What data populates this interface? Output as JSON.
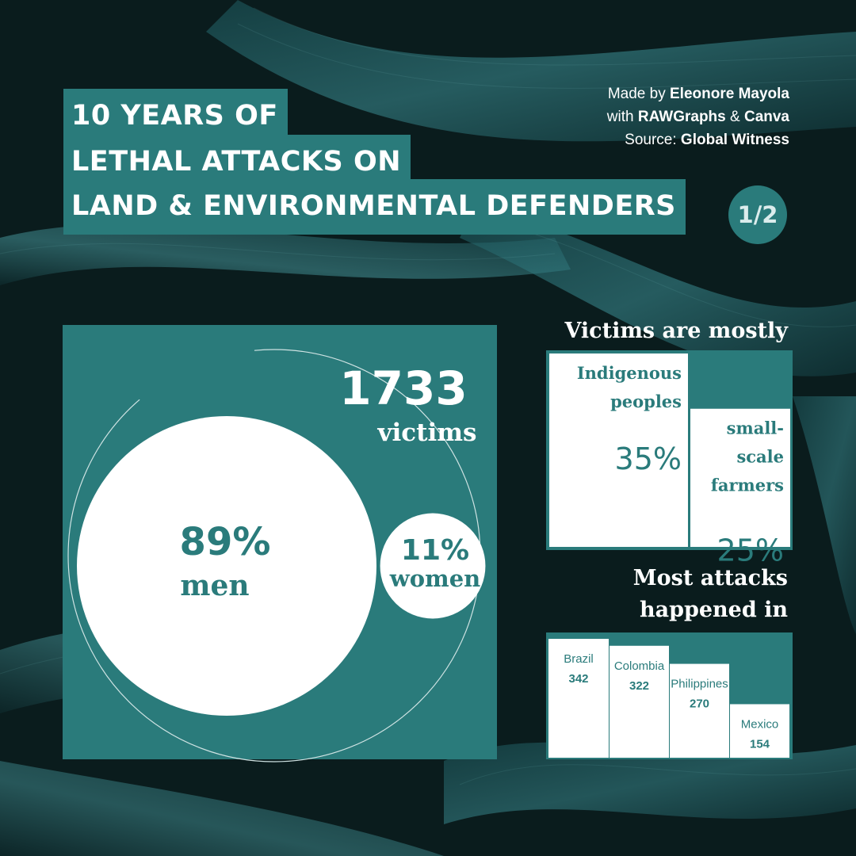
{
  "title": {
    "line1": "10 YEARS OF",
    "line2": "LETHAL ATTACKS ON",
    "line3": "LAND & ENVIRONMENTAL DEFENDERS"
  },
  "credits": {
    "made_by_prefix": "Made by ",
    "author": "Eleonore Mayola",
    "with_prefix": "with ",
    "tool1": "RAWGraphs",
    "amp": " & ",
    "tool2": "Canva",
    "source_prefix": "Source: ",
    "source": "Global Witness"
  },
  "page_indicator": "1/2",
  "colors": {
    "teal": "#2a7b7b",
    "dark_bg": "#0b1f1f",
    "white": "#ffffff"
  },
  "chart_data": [
    {
      "type": "bubble",
      "total": {
        "value": "1733",
        "label": "victims"
      },
      "series": [
        {
          "name": "men",
          "value": 89,
          "label": "89%"
        },
        {
          "name": "women",
          "value": 11,
          "label": "11%"
        }
      ]
    },
    {
      "type": "bar",
      "title": "Victims are mostly",
      "categories": [
        "Indigenous peoples",
        "small-scale farmers"
      ],
      "category_lines": [
        [
          "Indigenous",
          "peoples"
        ],
        [
          "small-",
          "scale",
          "farmers"
        ]
      ],
      "values": [
        35,
        25
      ],
      "labels": [
        "35%",
        "25%"
      ],
      "ylim": [
        0,
        35
      ]
    },
    {
      "type": "bar",
      "title": "Most attacks happened in",
      "title_lines": [
        "Most attacks",
        "happened in"
      ],
      "categories": [
        "Brazil",
        "Colombia",
        "Philippines",
        "Mexico"
      ],
      "values": [
        342,
        322,
        270,
        154
      ],
      "ylim": [
        0,
        342
      ]
    }
  ]
}
